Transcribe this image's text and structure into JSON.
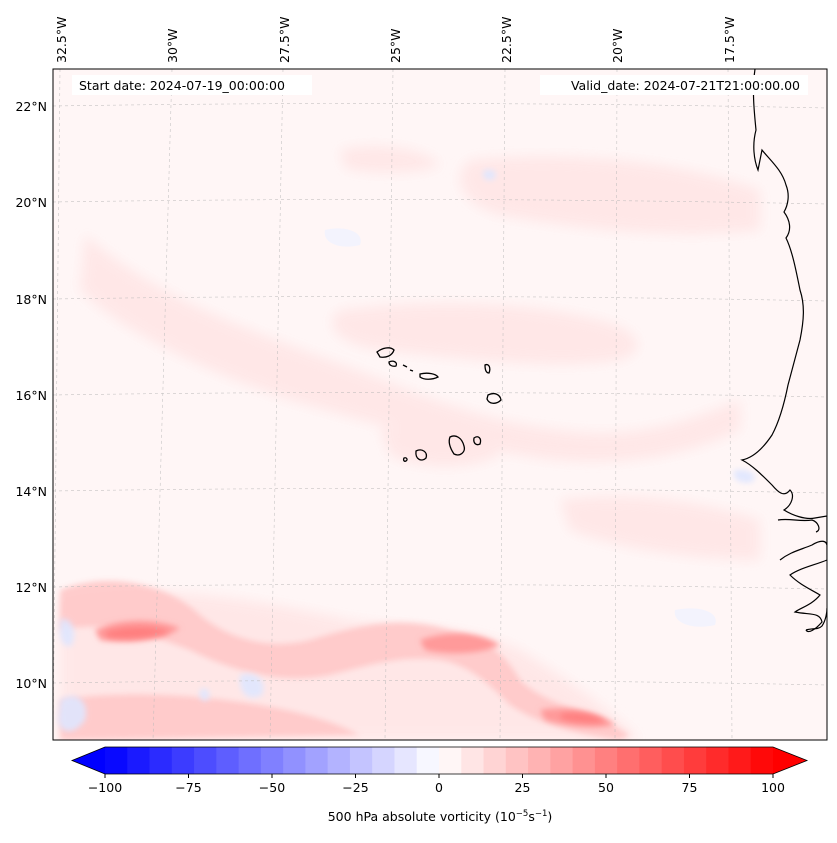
{
  "map": {
    "start_label": "Start date: 2024-07-19_00:00:00",
    "valid_label": "Valid_date: 2024-07-21T21:00:00.00",
    "lon_labels": [
      "32.5°W",
      "30°W",
      "27.5°W",
      "25°W",
      "22.5°W",
      "20°W",
      "17.5°W"
    ],
    "lat_labels": [
      "22°N",
      "20°N",
      "18°N",
      "16°N",
      "14°N",
      "12°N",
      "10°N"
    ]
  },
  "colorbar": {
    "label_main": "500 hPa absolute vorticity (10",
    "label_exp1": "−5",
    "label_mid": "s",
    "label_exp2": "−1",
    "label_end": ")",
    "ticks": [
      "−100",
      "−75",
      "−50",
      "−25",
      "0",
      "25",
      "50",
      "75",
      "100"
    ],
    "min": -100,
    "max": 100,
    "levels": 30,
    "neg_color": "#0000ff",
    "pos_color": "#ff0000"
  }
}
